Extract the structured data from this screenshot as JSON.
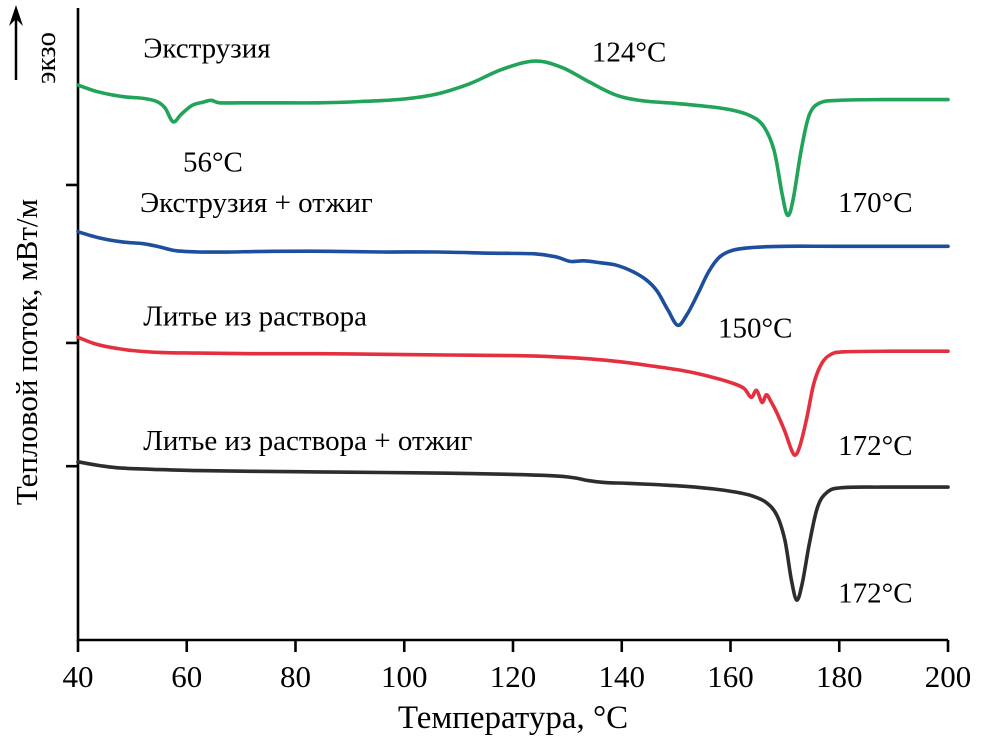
{
  "figure": {
    "y_axis_label": "Тепловой поток, мВт/м",
    "exo_label": "экзо",
    "x_axis_label": "Температура, °C"
  },
  "chart_data": {
    "type": "line",
    "title": "",
    "xlabel": "Температура, °C",
    "ylabel": "Тепловой поток, мВт/м (экзо — вверх)",
    "x_range": [
      40,
      200
    ],
    "x_ticks": [
      40,
      60,
      80,
      100,
      120,
      140,
      160,
      180,
      200
    ],
    "y_units": "arbitrary units, curves offset vertically (0–100 internal scale)",
    "y_axis_ticks": [
      72,
      47,
      27.5
    ],
    "grid": false,
    "legend": "inline labels above each curve",
    "series": [
      {
        "key": "series-extrusion",
        "name": "Экструзия",
        "color": "#21a35a",
        "peaks": [
          {
            "temp_c": 56,
            "label": "56°C",
            "kind": "endo-dip"
          },
          {
            "temp_c": 124,
            "label": "124°C",
            "kind": "broad-exo-peak"
          },
          {
            "temp_c": 170,
            "label": "170°C",
            "kind": "melting-endo"
          }
        ],
        "points": [
          [
            40,
            87.8
          ],
          [
            43,
            86.9
          ],
          [
            46,
            86.3
          ],
          [
            49,
            85.9
          ],
          [
            52,
            85.7
          ],
          [
            54.5,
            85.2
          ],
          [
            56,
            84.2
          ],
          [
            57.5,
            82.0
          ],
          [
            59,
            83.2
          ],
          [
            61,
            84.6
          ],
          [
            63,
            85.1
          ],
          [
            64.5,
            85.4
          ],
          [
            66,
            85.0
          ],
          [
            70,
            85.0
          ],
          [
            76,
            85.0
          ],
          [
            84,
            85.0
          ],
          [
            92,
            85.2
          ],
          [
            100,
            85.6
          ],
          [
            106,
            86.4
          ],
          [
            112,
            88.0
          ],
          [
            118,
            90.3
          ],
          [
            124,
            91.6
          ],
          [
            129,
            90.6
          ],
          [
            134,
            88.3
          ],
          [
            139,
            86.2
          ],
          [
            144,
            85.3
          ],
          [
            150,
            84.9
          ],
          [
            156,
            84.4
          ],
          [
            160,
            83.9
          ],
          [
            163.5,
            83.0
          ],
          [
            166,
            81.4
          ],
          [
            168,
            77.5
          ],
          [
            169.5,
            70.5
          ],
          [
            170.5,
            67.2
          ],
          [
            171.5,
            69.6
          ],
          [
            173,
            77.5
          ],
          [
            174.5,
            83.1
          ],
          [
            176.5,
            85.0
          ],
          [
            180,
            85.4
          ],
          [
            188,
            85.5
          ],
          [
            200,
            85.5
          ]
        ]
      },
      {
        "key": "series-extrusion-annealed",
        "name": "Экструзия + отжиг",
        "color": "#1d4f9e",
        "peaks": [
          {
            "temp_c": 150,
            "label": "150°C",
            "kind": "melting-endo"
          }
        ],
        "points": [
          [
            40,
            64.6
          ],
          [
            44,
            63.6
          ],
          [
            48,
            63.0
          ],
          [
            52,
            62.7
          ],
          [
            55,
            62.2
          ],
          [
            58,
            61.6
          ],
          [
            62,
            61.4
          ],
          [
            68,
            61.4
          ],
          [
            76,
            61.5
          ],
          [
            86,
            61.5
          ],
          [
            96,
            61.4
          ],
          [
            106,
            61.4
          ],
          [
            116,
            61.2
          ],
          [
            124,
            61.1
          ],
          [
            128,
            60.6
          ],
          [
            130.5,
            59.9
          ],
          [
            133,
            60.0
          ],
          [
            136,
            59.7
          ],
          [
            139,
            59.3
          ],
          [
            142,
            58.3
          ],
          [
            144.5,
            57.0
          ],
          [
            146.5,
            55.2
          ],
          [
            148.5,
            52.2
          ],
          [
            150.3,
            49.8
          ],
          [
            152,
            51.5
          ],
          [
            154,
            54.8
          ],
          [
            156,
            58.3
          ],
          [
            158,
            60.6
          ],
          [
            160.5,
            61.7
          ],
          [
            164,
            62.1
          ],
          [
            170,
            62.3
          ],
          [
            180,
            62.3
          ],
          [
            200,
            62.3
          ]
        ]
      },
      {
        "key": "series-solution-cast",
        "name": "Литье из раствора",
        "color": "#e4303e",
        "peaks": [
          {
            "temp_c": 172,
            "label": "172°C",
            "kind": "melting-endo"
          }
        ],
        "points": [
          [
            40,
            47.9
          ],
          [
            43,
            46.9
          ],
          [
            46,
            46.3
          ],
          [
            50,
            45.8
          ],
          [
            55,
            45.5
          ],
          [
            62,
            45.4
          ],
          [
            72,
            45.3
          ],
          [
            84,
            45.3
          ],
          [
            96,
            45.2
          ],
          [
            108,
            45.1
          ],
          [
            120,
            45.0
          ],
          [
            128,
            44.8
          ],
          [
            134,
            44.5
          ],
          [
            140,
            44.0
          ],
          [
            146,
            43.3
          ],
          [
            152,
            42.5
          ],
          [
            157,
            41.5
          ],
          [
            160.5,
            40.6
          ],
          [
            162.5,
            39.8
          ],
          [
            163.8,
            38.4
          ],
          [
            164.8,
            39.5
          ],
          [
            165.8,
            37.6
          ],
          [
            166.6,
            38.8
          ],
          [
            167.4,
            37.8
          ],
          [
            168.6,
            35.8
          ],
          [
            170,
            33.0
          ],
          [
            171.3,
            29.9
          ],
          [
            172,
            29.3
          ],
          [
            172.8,
            30.8
          ],
          [
            174,
            35.0
          ],
          [
            175.3,
            40.5
          ],
          [
            176.8,
            43.8
          ],
          [
            178.5,
            45.2
          ],
          [
            181,
            45.6
          ],
          [
            190,
            45.7
          ],
          [
            200,
            45.7
          ]
        ]
      },
      {
        "key": "series-solution-cast-annealed",
        "name": "Литье из раствора + отжиг",
        "color": "#2d2d2d",
        "peaks": [
          {
            "temp_c": 172,
            "label": "172°C",
            "kind": "melting-endo"
          }
        ],
        "points": [
          [
            40,
            28.2
          ],
          [
            44,
            27.6
          ],
          [
            48,
            27.2
          ],
          [
            54,
            27.0
          ],
          [
            62,
            26.8
          ],
          [
            72,
            26.7
          ],
          [
            84,
            26.6
          ],
          [
            96,
            26.5
          ],
          [
            108,
            26.4
          ],
          [
            120,
            26.2
          ],
          [
            127,
            26.0
          ],
          [
            131,
            25.7
          ],
          [
            134,
            25.2
          ],
          [
            137,
            24.9
          ],
          [
            141,
            24.8
          ],
          [
            146,
            24.6
          ],
          [
            152,
            24.3
          ],
          [
            157,
            23.9
          ],
          [
            161,
            23.4
          ],
          [
            164,
            22.8
          ],
          [
            166.5,
            21.8
          ],
          [
            168.5,
            19.8
          ],
          [
            170,
            15.8
          ],
          [
            171.2,
            9.5
          ],
          [
            172.2,
            6.3
          ],
          [
            173.2,
            9.0
          ],
          [
            174.5,
            15.2
          ],
          [
            176,
            21.0
          ],
          [
            177.8,
            23.4
          ],
          [
            180.5,
            24.1
          ],
          [
            188,
            24.2
          ],
          [
            200,
            24.2
          ]
        ]
      }
    ],
    "annotations": [
      {
        "name": "curve-label-extrusion",
        "text": "Экструзия",
        "x": 52,
        "y": 92.2,
        "anchor": "start"
      },
      {
        "name": "peak-label-124c",
        "text": "124°C",
        "x": 134.5,
        "y": 91.5,
        "anchor": "start"
      },
      {
        "name": "peak-label-56c",
        "text": "56°C",
        "x": 59.3,
        "y": 74.1,
        "anchor": "start"
      },
      {
        "name": "curve-label-extrusion-annealed",
        "text": "Экструзия + отжиг",
        "x": 51.4,
        "y": 67.7,
        "anchor": "start"
      },
      {
        "name": "peak-label-170c",
        "text": "170°C",
        "x": 179.8,
        "y": 67.7,
        "anchor": "start"
      },
      {
        "name": "curve-label-solution-cast",
        "text": "Литье из раствора",
        "x": 52,
        "y": 49.8,
        "anchor": "start"
      },
      {
        "name": "peak-label-150c",
        "text": "150°C",
        "x": 157.7,
        "y": 47.9,
        "anchor": "start"
      },
      {
        "name": "curve-label-solution-cast-annealed",
        "text": "Литье из раствора + отжиг",
        "x": 52,
        "y": 30.1,
        "anchor": "start"
      },
      {
        "name": "peak-label-172c-solution-cast",
        "text": "172°C",
        "x": 179.8,
        "y": 29.3,
        "anchor": "start"
      },
      {
        "name": "peak-label-172c-annealed",
        "text": "172°C",
        "x": 179.8,
        "y": 5.9,
        "anchor": "start"
      }
    ]
  }
}
